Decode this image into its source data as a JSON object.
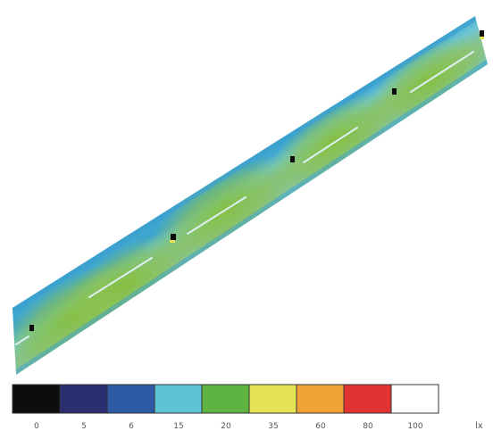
{
  "legend": {
    "unit": "lx",
    "levels": [
      {
        "label": "0",
        "color": "#0d0d0d"
      },
      {
        "label": "5",
        "color": "#2b2f6f"
      },
      {
        "label": "6",
        "color": "#2f5aa6"
      },
      {
        "label": "15",
        "color": "#5cc4d4"
      },
      {
        "label": "20",
        "color": "#5fb340"
      },
      {
        "label": "35",
        "color": "#e4e455"
      },
      {
        "label": "60",
        "color": "#efa337"
      },
      {
        "label": "80",
        "color": "#e13333"
      },
      {
        "label": "100",
        "color": "#ffffff"
      }
    ]
  },
  "colors": {
    "road_edge": "#4fb8d8",
    "road_fill": "#7cc4a4",
    "illuminated": "#8ac04a",
    "lane_marking": "#d8eef2"
  },
  "luminaire_count": 5
}
